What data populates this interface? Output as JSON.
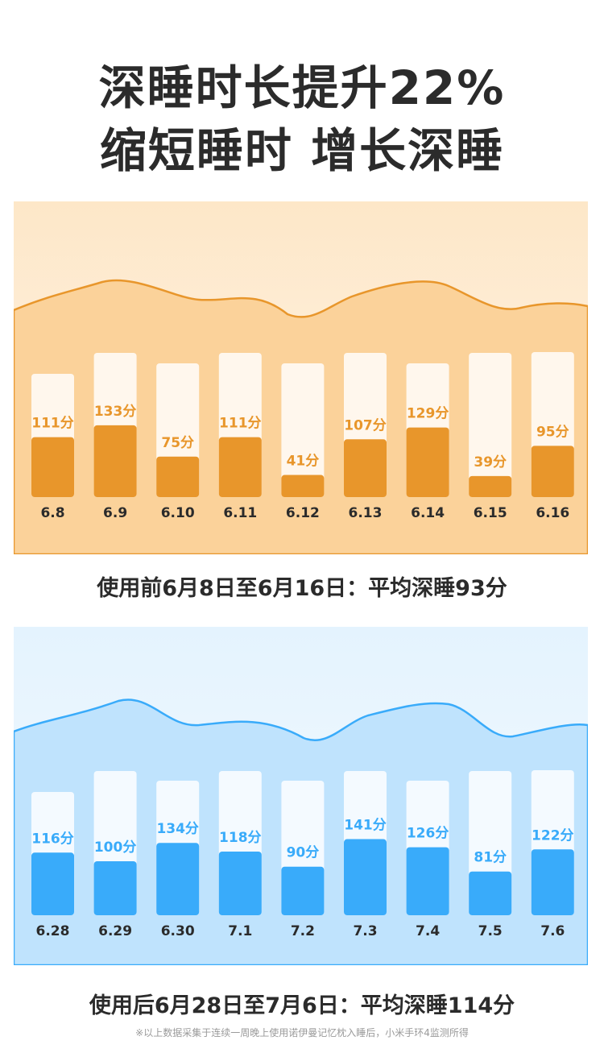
{
  "headline": {
    "line1": "深睡时长提升22%",
    "line2": "缩短睡时 增长深睡"
  },
  "colors": {
    "before_accent": "#e8962b",
    "before_wave": "#fbd29a",
    "after_accent": "#39abfa",
    "after_wave": "#bfe3fd"
  },
  "chart_data": [
    {
      "type": "bar",
      "categories": [
        "6.8",
        "6.9",
        "6.10",
        "6.11",
        "6.12",
        "6.13",
        "6.14",
        "6.15",
        "6.16"
      ],
      "values": [
        111,
        133,
        75,
        111,
        41,
        107,
        129,
        39,
        95
      ],
      "value_labels": [
        "111分",
        "133分",
        "75分",
        "111分",
        "41分",
        "107分",
        "129分",
        "39分",
        "95分"
      ],
      "title": "",
      "xlabel": "",
      "ylabel": "",
      "grid": false
    },
    {
      "type": "bar",
      "categories": [
        "6.28",
        "6.29",
        "6.30",
        "7.1",
        "7.2",
        "7.3",
        "7.4",
        "7.5",
        "7.6"
      ],
      "values": [
        116,
        100,
        134,
        118,
        90,
        141,
        126,
        81,
        122
      ],
      "value_labels": [
        "116分",
        "100分",
        "134分",
        "118分",
        "90分",
        "141分",
        "126分",
        "81分",
        "122分"
      ],
      "title": "",
      "xlabel": "",
      "ylabel": "",
      "grid": false
    }
  ],
  "captions": {
    "before": "使用前6月8日至6月16日：平均深睡93分",
    "after": "使用后6月28日至7月6日：平均深睡114分"
  },
  "footnote": "※以上数据采集于连续一周晚上使用诺伊曼记忆枕入睡后，小米手环4监测所得"
}
